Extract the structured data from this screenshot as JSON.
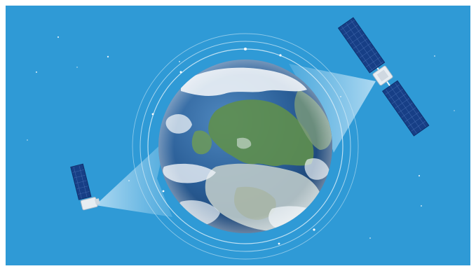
{
  "scene": {
    "colors": {
      "background": "#2f9ad6",
      "ocean_dark": "#1e4f86",
      "ocean_mid": "#2f6fa8",
      "land_green": "#5f8f4e",
      "land_desert": "#b9c7c8",
      "cloud": "#eef3f7",
      "beam": "#d8eefa",
      "orbit_ring": "#d6ecf8",
      "panel": "#173f86",
      "panel_grid": "#4b73b8",
      "satellite_body": "#e7edf2"
    },
    "icons": {
      "earth": "earth-globe-icon",
      "satellite_large": "satellite-icon",
      "satellite_small": "satellite-icon"
    }
  }
}
